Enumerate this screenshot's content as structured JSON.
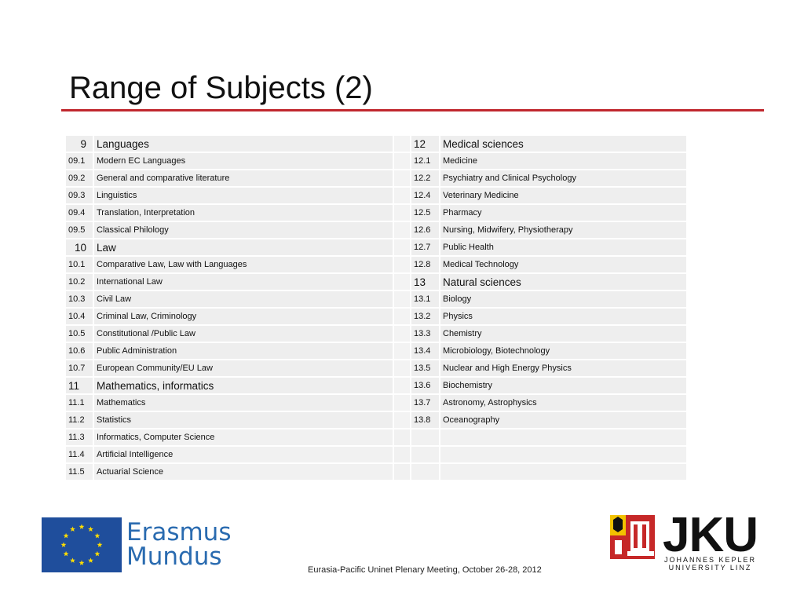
{
  "slide": {
    "title": "Range of Subjects (2)",
    "footer": "Eurasia-Pacific Uninet Plenary Meeting, October 26-28, 2012",
    "accent_color": "#c0272d"
  },
  "table": {
    "rows": [
      {
        "left_code": "9",
        "left_name": "Languages",
        "left_header": true,
        "right_code": "12",
        "right_name": "Medical sciences",
        "right_header": true
      },
      {
        "left_code": "09.1",
        "left_name": "Modern EC Languages",
        "right_code": "12.1",
        "right_name": "Medicine"
      },
      {
        "left_code": "09.2",
        "left_name": "General and comparative literature",
        "right_code": "12.2",
        "right_name": "Psychiatry and Clinical Psychology"
      },
      {
        "left_code": "09.3",
        "left_name": "Linguistics",
        "right_code": "12.4",
        "right_name": "Veterinary Medicine"
      },
      {
        "left_code": "09.4",
        "left_name": "Translation, Interpretation",
        "right_code": "12.5",
        "right_name": "Pharmacy"
      },
      {
        "left_code": "09.5",
        "left_name": "Classical Philology",
        "right_code": "12.6",
        "right_name": "Nursing, Midwifery, Physiotherapy"
      },
      {
        "left_code": "10",
        "left_name": "Law",
        "left_header": true,
        "right_code": "12.7",
        "right_name": "Public Health"
      },
      {
        "left_code": "10.1",
        "left_name": "Comparative Law, Law with Languages",
        "right_code": "12.8",
        "right_name": "Medical Technology"
      },
      {
        "left_code": "10.2",
        "left_name": "International Law",
        "right_code": "13",
        "right_name": "Natural sciences",
        "right_header": true
      },
      {
        "left_code": "10.3",
        "left_name": "Civil Law",
        "right_code": "13.1",
        "right_name": "Biology"
      },
      {
        "left_code": "10.4",
        "left_name": "Criminal Law, Criminology",
        "right_code": "13.2",
        "right_name": "Physics"
      },
      {
        "left_code": "10.5",
        "left_name": "Constitutional /Public Law",
        "right_code": "13.3",
        "right_name": "Chemistry"
      },
      {
        "left_code": "10.6",
        "left_name": "Public Administration",
        "right_code": "13.4",
        "right_name": "Microbiology, Biotechnology"
      },
      {
        "left_code": "10.7",
        "left_name": "European Community/EU Law",
        "right_code": "13.5",
        "right_name": "Nuclear and High Energy Physics"
      },
      {
        "left_code": "11",
        "left_name": "Mathematics, informatics",
        "left_header": true,
        "left_header_align": "left",
        "right_code": "13.6",
        "right_name": "Biochemistry"
      },
      {
        "left_code": "11.1",
        "left_name": "Mathematics",
        "right_code": "13.7",
        "right_name": "Astronomy, Astrophysics"
      },
      {
        "left_code": "11.2",
        "left_name": "Statistics",
        "right_code": "13.8",
        "right_name": "Oceanography"
      },
      {
        "left_code": "11.3",
        "left_name": "Informatics, Computer Science",
        "right_code": "",
        "right_name": ""
      },
      {
        "left_code": "11.4",
        "left_name": "Artificial Intelligence",
        "right_code": "",
        "right_name": ""
      },
      {
        "left_code": "11.5",
        "left_name": "Actuarial Science",
        "right_code": "",
        "right_name": ""
      }
    ]
  },
  "logos": {
    "erasmus": {
      "line1": "Erasmus",
      "line2": "Mundus",
      "icon": "eu-flag-icon",
      "color": "#2a6bb0",
      "flag_color": "#1f4e9c"
    },
    "jku": {
      "logo": "JKU",
      "line1": "JOHANNES KEPLER",
      "line2": "UNIVERSITY LINZ",
      "icon": "jku-crest-icon"
    }
  }
}
